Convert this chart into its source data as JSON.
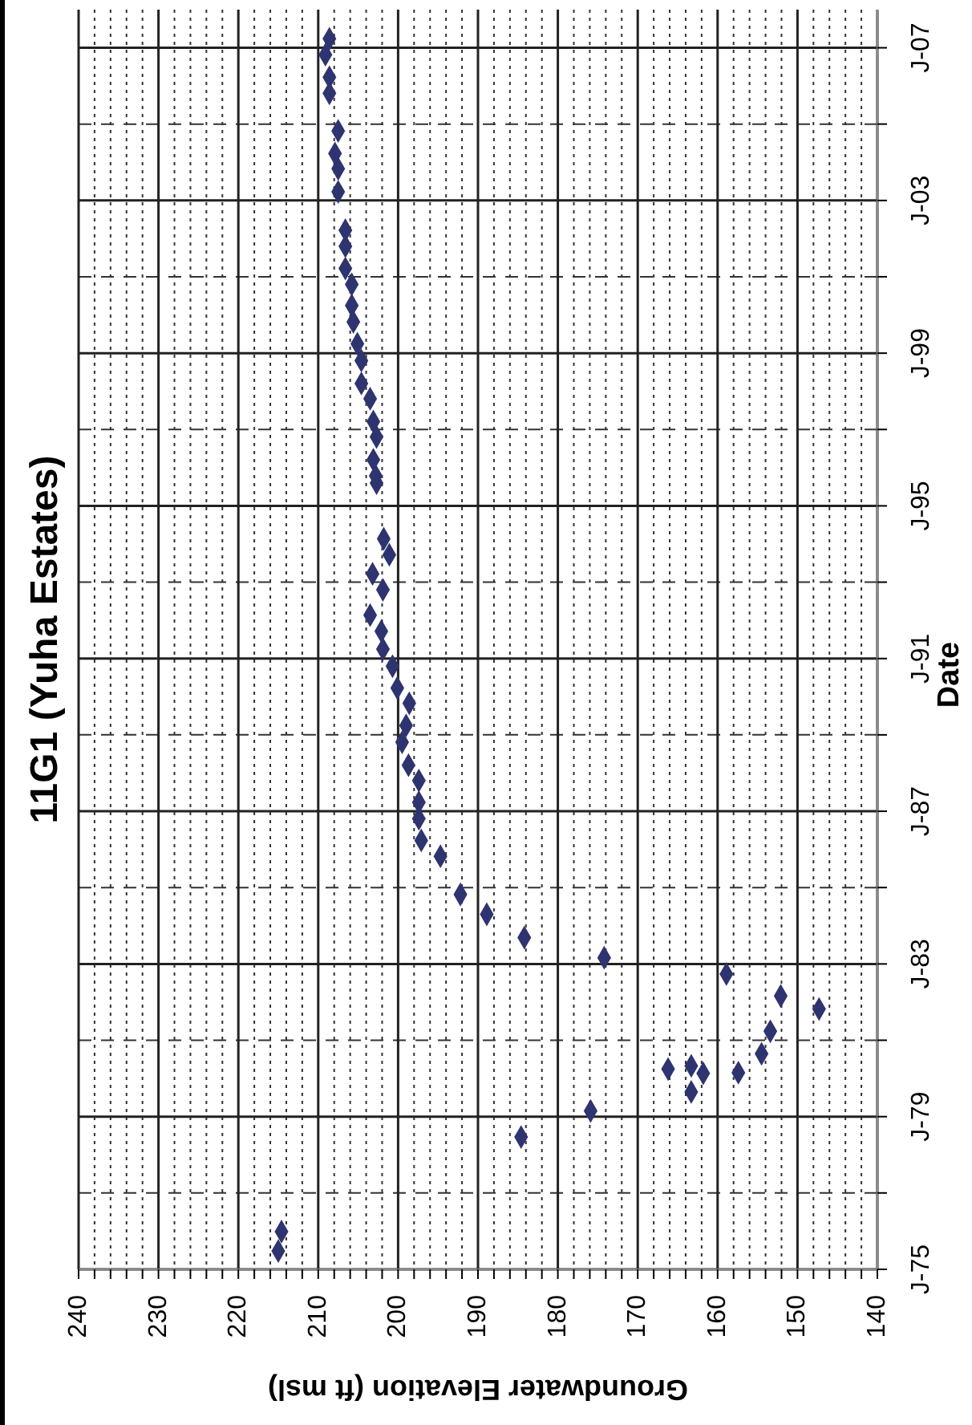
{
  "chart_data": {
    "type": "scatter",
    "orientation": "horizontal",
    "title": "11G1 (Yuha Estates)",
    "xlabel": "Groundwater Elevation (ft msl)",
    "ylabel": "Date",
    "x": [
      "1975-06-25",
      "1975-12-28",
      "1978-06-20",
      "1979-02-25",
      "1979-08-25",
      "1980-02-20",
      "1980-02-25",
      "1980-04-01",
      "1980-05-01",
      "1980-08-25",
      "1981-03-28",
      "1981-10-27",
      "1982-03-01",
      "1982-09-27",
      "1983-03-01",
      "1983-09-10",
      "1984-04-20",
      "1984-10-27",
      "1985-10-27",
      "1986-03-28",
      "1986-10-22",
      "1987-03-28",
      "1987-10-22",
      "1988-03-17",
      "1988-10-22",
      "1989-04-01",
      "1989-10-30",
      "1990-03-25",
      "1990-10-20",
      "1991-04-01",
      "1991-09-20",
      "1992-02-20",
      "1992-10-20",
      "1993-03-22",
      "1993-09-20",
      "1994-02-20",
      "1995-08-07",
      "1995-10-15",
      "1996-03-17",
      "1996-10-22",
      "1997-03-17",
      "1997-10-22",
      "1998-03-17",
      "1998-10-22",
      "1999-04-01",
      "1999-10-27",
      "2000-04-01",
      "2000-10-20",
      "2001-03-22",
      "2001-10-20",
      "2002-03-22",
      "2003-03-25",
      "2003-11-01",
      "2004-03-25",
      "2004-10-27",
      "2005-10-22",
      "2006-03-25",
      "2006-10-27",
      "2007-03-28"
    ],
    "series": [
      {
        "color": "#2e3470",
        "values": [
          215.0,
          214.6,
          184.6,
          175.9,
          163.3,
          161.8,
          157.4,
          166.2,
          163.3,
          154.5,
          153.4,
          147.3,
          152.1,
          158.9,
          174.2,
          184.2,
          188.9,
          192.2,
          194.7,
          197.1,
          197.4,
          197.4,
          197.4,
          198.7,
          199.5,
          199.0,
          198.6,
          200.1,
          200.7,
          201.9,
          202.1,
          203.5,
          201.9,
          203.2,
          201.1,
          201.8,
          202.7,
          202.8,
          203.1,
          202.7,
          203.1,
          203.5,
          204.6,
          204.6,
          205.1,
          205.6,
          205.8,
          205.8,
          206.6,
          206.6,
          206.6,
          207.5,
          207.5,
          207.9,
          207.5,
          208.6,
          208.6,
          209.1,
          208.6
        ]
      }
    ],
    "xlim": [
      240,
      140
    ],
    "xticks": [
      240,
      {
        "value": 238,
        "label": null
      },
      {
        "value": 236,
        "label": null
      },
      {
        "value": 234,
        "label": null
      },
      {
        "value": 232,
        "label": null
      },
      230,
      {
        "value": 228,
        "label": null
      },
      {
        "value": 226,
        "label": null
      },
      {
        "value": 224,
        "label": null
      },
      {
        "value": 222,
        "label": null
      },
      220,
      {
        "value": 218,
        "label": null
      },
      {
        "value": 216,
        "label": null
      },
      {
        "value": 214,
        "label": null
      },
      {
        "value": 212,
        "label": null
      },
      210,
      {
        "value": 208,
        "label": null
      },
      {
        "value": 206,
        "label": null
      },
      {
        "value": 204,
        "label": null
      },
      {
        "value": 202,
        "label": null
      },
      200,
      {
        "value": 198,
        "label": null
      },
      {
        "value": 196,
        "label": null
      },
      {
        "value": 194,
        "label": null
      },
      {
        "value": 192,
        "label": null
      },
      190,
      {
        "value": 188,
        "label": null
      },
      {
        "value": 186,
        "label": null
      },
      {
        "value": 184,
        "label": null
      },
      {
        "value": 182,
        "label": null
      },
      180,
      {
        "value": 178,
        "label": null
      },
      {
        "value": 176,
        "label": null
      },
      {
        "value": 174,
        "label": null
      },
      {
        "value": 172,
        "label": null
      },
      170,
      {
        "value": 168,
        "label": null
      },
      {
        "value": 166,
        "label": null
      },
      {
        "value": 164,
        "label": null
      },
      {
        "value": 162,
        "label": null
      },
      160,
      {
        "value": 158,
        "label": null
      },
      {
        "value": 156,
        "label": null
      },
      {
        "value": 154,
        "label": null
      },
      {
        "value": 152,
        "label": null
      },
      150,
      {
        "value": 148,
        "label": null
      },
      {
        "value": 146,
        "label": null
      },
      {
        "value": 144,
        "label": null
      },
      {
        "value": 142,
        "label": null
      },
      140
    ],
    "ylim": [
      "1975-01",
      "2008-01"
    ],
    "yticks": [
      {
        "value": "1975-01",
        "label": "J-75"
      },
      {
        "value": "1977-01",
        "label": null
      },
      {
        "value": "1979-01",
        "label": "J-79"
      },
      {
        "value": "1981-01",
        "label": null
      },
      {
        "value": "1983-01",
        "label": "J-83"
      },
      {
        "value": "1985-01",
        "label": null
      },
      {
        "value": "1987-01",
        "label": "J-87"
      },
      {
        "value": "1989-01",
        "label": null
      },
      {
        "value": "1991-01",
        "label": "J-91"
      },
      {
        "value": "1993-01",
        "label": null
      },
      {
        "value": "1995-01",
        "label": "J-95"
      },
      {
        "value": "1997-01",
        "label": null
      },
      {
        "value": "1999-01",
        "label": "J-99"
      },
      {
        "value": "2001-01",
        "label": null
      },
      {
        "value": "2003-01",
        "label": "J-03"
      },
      {
        "value": "2005-01",
        "label": null
      },
      {
        "value": "2007-01",
        "label": "J-07"
      }
    ],
    "grid": true,
    "marker": "diamond"
  }
}
